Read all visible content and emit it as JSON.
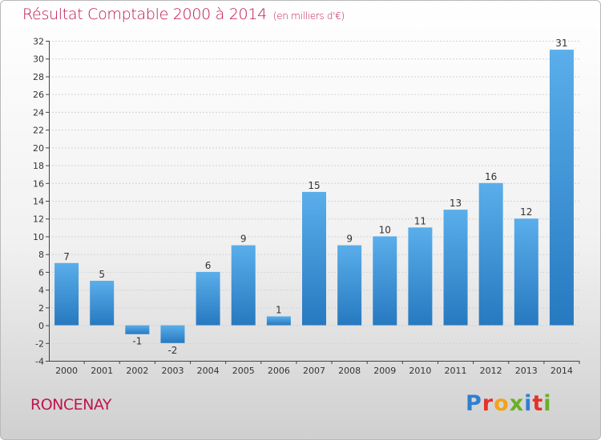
{
  "chart_data": {
    "type": "bar",
    "title": "Résultat Comptable 2000 à 2014",
    "subtitle": "(en milliers d'€)",
    "categories": [
      "2000",
      "2001",
      "2002",
      "2003",
      "2004",
      "2005",
      "2006",
      "2007",
      "2008",
      "2009",
      "2010",
      "2011",
      "2012",
      "2013",
      "2014"
    ],
    "values": [
      7,
      5,
      -1,
      -2,
      6,
      9,
      1,
      15,
      9,
      10,
      11,
      13,
      16,
      12,
      31
    ],
    "ylim": [
      -4,
      32
    ],
    "yticks": [
      -4,
      -2,
      0,
      2,
      4,
      6,
      8,
      10,
      12,
      14,
      16,
      18,
      20,
      22,
      24,
      26,
      28,
      30,
      32
    ],
    "grid": true,
    "bar_color": "#3a8fd6"
  },
  "footer": {
    "commune": "RONCENAY",
    "logo_letters": [
      "P",
      "r",
      "o",
      "x",
      "i",
      "t",
      "i"
    ],
    "logo_colors": [
      "#2f7fd0",
      "#e4322b",
      "#f2a31b",
      "#6ab023",
      "#2f7fd0",
      "#e4322b",
      "#6ab023"
    ]
  }
}
